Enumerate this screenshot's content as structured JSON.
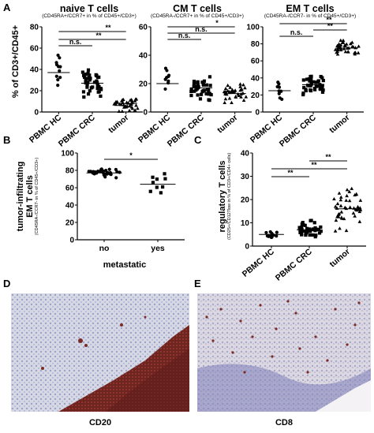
{
  "panels": {
    "A": "A",
    "B": "B",
    "C": "C",
    "D": "D",
    "E": "E"
  },
  "panelA": {
    "ylabel": "% of CD3+/CD45+",
    "plots": [
      {
        "title": "naive T cells",
        "subtitle": "(CD45RA+/CCR7+ in % of CD45+/CD3+)",
        "yticks": [
          "0",
          "20",
          "40",
          "60",
          "80"
        ],
        "ymax": 80,
        "categories": [
          "PBMC HC",
          "PBMC CRC",
          "tumor"
        ],
        "means": [
          37,
          27,
          8
        ],
        "sig": [
          "n.s.",
          "**",
          "**"
        ]
      },
      {
        "title": "CM T cells",
        "subtitle": "(CD45RA-/CCR7+ in % of CD45+/CD3+)",
        "yticks": [
          "0",
          "20",
          "40",
          "60"
        ],
        "ymax": 60,
        "categories": [
          "PBMC HC",
          "PBMC CRC",
          "tumor"
        ],
        "means": [
          20,
          17,
          13
        ],
        "sig": [
          "n.s.",
          "n.s.",
          "*"
        ]
      },
      {
        "title": "EM T cells",
        "subtitle": "(CD45RA-/CCR7- in % of CD45+/CD3+)",
        "yticks": [
          "0",
          "20",
          "40",
          "60",
          "80",
          "100"
        ],
        "ymax": 100,
        "categories": [
          "PBMC HC",
          "PBMC CRC",
          "tumor"
        ],
        "means": [
          25,
          32,
          75
        ],
        "sig": [
          "n.s.",
          "**",
          "**"
        ]
      }
    ]
  },
  "panelB": {
    "ylabel_main": "tumor-infiltrating",
    "ylabel_main2": "EM T cells",
    "ylabel_sub": "(CD45RA-/CCR7- in % of CD45+/CD3+)",
    "xlabel": "metastatic",
    "categories": [
      "no",
      "yes"
    ],
    "yticks": [
      "0",
      "20",
      "40",
      "60",
      "80",
      "100"
    ],
    "ymax": 100,
    "means": [
      77,
      64
    ],
    "sig": "*"
  },
  "panelC": {
    "ylabel_main": "regulatory T cells",
    "ylabel_sub": "(CD25+/CD127low in % of CD3+/CD4+ cells)",
    "categories": [
      "PBMC HC",
      "PBMC CRC",
      "tumor"
    ],
    "yticks": [
      "0",
      "10",
      "20",
      "30",
      "40"
    ],
    "ymax": 40,
    "means": [
      5,
      7,
      16
    ],
    "sig": [
      "**",
      "**",
      "**"
    ]
  },
  "panelD": {
    "label": "CD20"
  },
  "panelE": {
    "label": "CD8"
  },
  "colors": {
    "tissue_bg": "#d9dbe6",
    "tissue_blue": "#8e94c4",
    "stain_brown": "#7a2b25"
  }
}
